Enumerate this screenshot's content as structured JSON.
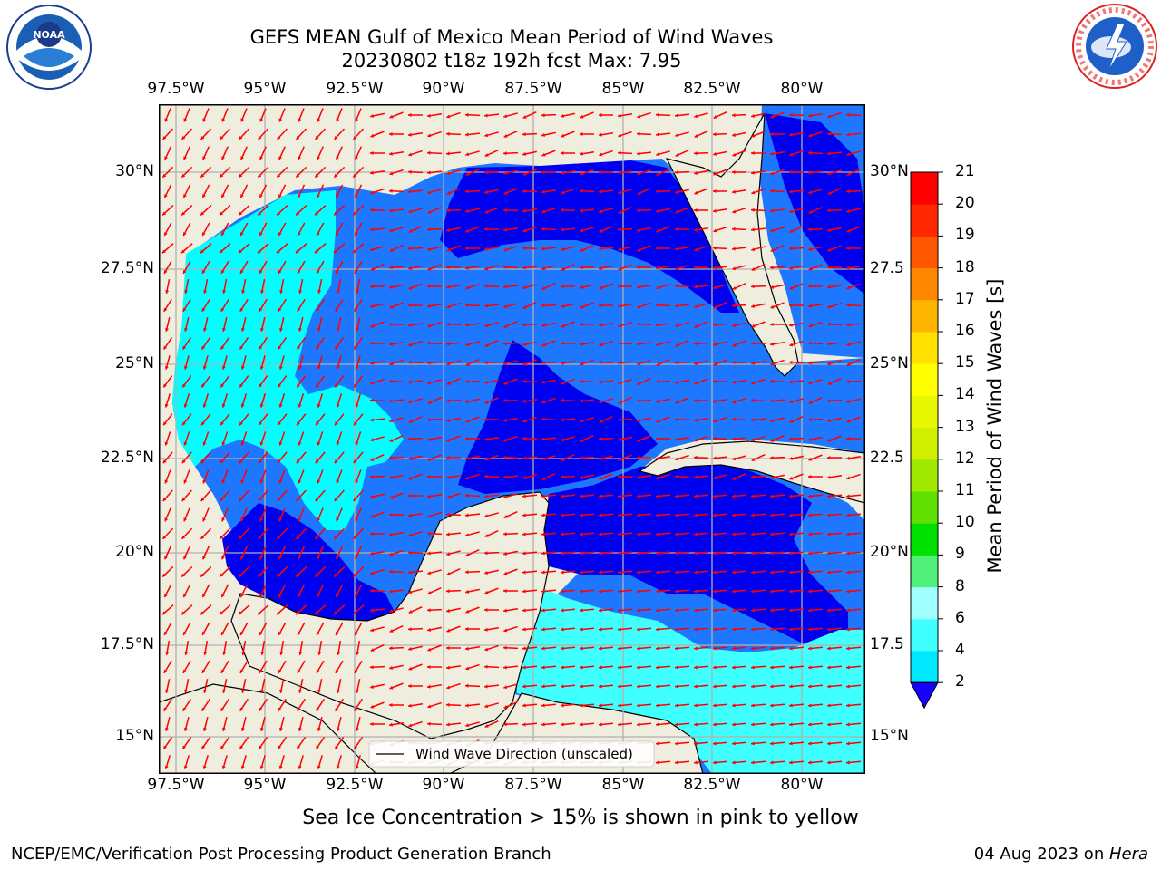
{
  "header": {
    "title_line1": "GEFS MEAN Gulf of Mexico Mean Period of Wind Waves",
    "title_line2": "20230802 t18z 192h fcst   Max: 7.95"
  },
  "logos": {
    "left": "noaa-logo",
    "right": "nws-logo"
  },
  "map": {
    "lon_ticks": [
      "97.5°W",
      "95°W",
      "92.5°W",
      "90°W",
      "87.5°W",
      "85°W",
      "82.5°W",
      "80°W"
    ],
    "lat_ticks_left": [
      "30°N",
      "27.5°N",
      "25°N",
      "22.5°N",
      "20°N",
      "17.5°N",
      "15°N"
    ],
    "lat_ticks_right": [
      "30°N",
      "27.5",
      "25°N",
      "22.5",
      "20°N",
      "17.5",
      "15°N"
    ],
    "legend_label": "Wind Wave Direction (unscaled)",
    "colors": {
      "land": "#efedde",
      "bin_2_4": "#1e78ff",
      "bin_low": "#0000f0",
      "bin_4_6": "#00ffff",
      "bin_6_8": "#40ffff",
      "arrow": "#ff0000",
      "grid": "#b0b0b0"
    }
  },
  "colorbar": {
    "label": "Mean Period of Wind Waves [s]",
    "ticks": [
      "2",
      "4",
      "6",
      "8",
      "9",
      "10",
      "11",
      "12",
      "13",
      "14",
      "15",
      "16",
      "17",
      "18",
      "19",
      "20",
      "21"
    ],
    "colors": [
      "#1f6ff5",
      "#00e8ff",
      "#40ffff",
      "#a0ffff",
      "#50f07a",
      "#00e000",
      "#60e000",
      "#a0e800",
      "#d0f000",
      "#e8f800",
      "#ffff00",
      "#ffe000",
      "#ffb400",
      "#ff8800",
      "#ff5800",
      "#ff2800",
      "#ff0000"
    ]
  },
  "annotation": "Sea Ice Concentration > 15% is shown in pink to yellow",
  "footer": {
    "credit": "NCEP/EMC/Verification Post Processing Product Generation Branch",
    "date": "04 Aug 2023 on ",
    "host": "Hera"
  }
}
